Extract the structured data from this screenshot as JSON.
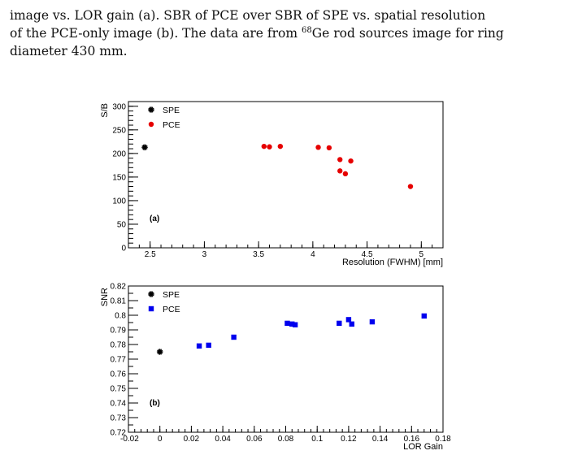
{
  "caption": {
    "line1": "image vs. LOR gain (a). SBR of PCE over SBR of SPE vs. spatial resolution",
    "line2": "of the PCE-only image (b). The data are from ",
    "superscript": "68",
    "line2_rest": "Ge rod sources image for ring",
    "line3": "diameter 430 mm."
  },
  "colors": {
    "spe": "#000000",
    "pce_a": "#e60000",
    "pce_b": "#0000ee"
  },
  "chart_data": [
    {
      "type": "scatter",
      "panel_label": "(a)",
      "xlabel": "Resolution (FWHM) [mm]",
      "ylabel": "S/B",
      "xlim": [
        2.3,
        5.2
      ],
      "ylim": [
        0,
        310
      ],
      "xticks": [
        2.5,
        3,
        3.5,
        4,
        4.5,
        5
      ],
      "xtick_labels": [
        "2.5",
        "3",
        "3.5",
        "4",
        "4.5",
        "5"
      ],
      "yticks": [
        0,
        50,
        100,
        150,
        200,
        250,
        300
      ],
      "ytick_labels": [
        "0",
        "50",
        "100",
        "150",
        "200",
        "250",
        "300"
      ],
      "legend": "top-left",
      "series": [
        {
          "name": "SPE",
          "marker": "star",
          "color": "#000000",
          "points": [
            [
              2.45,
              213
            ]
          ]
        },
        {
          "name": "PCE",
          "marker": "circle",
          "color": "#e60000",
          "points": [
            [
              3.55,
              215
            ],
            [
              3.6,
              214
            ],
            [
              3.7,
              215
            ],
            [
              4.05,
              213
            ],
            [
              4.15,
              212
            ],
            [
              4.25,
              187
            ],
            [
              4.35,
              184
            ],
            [
              4.25,
              163
            ],
            [
              4.3,
              157
            ],
            [
              4.9,
              130
            ]
          ]
        }
      ]
    },
    {
      "type": "scatter",
      "panel_label": "(b)",
      "xlabel": "LOR Gain",
      "ylabel": "SNR",
      "xlim": [
        -0.02,
        0.18
      ],
      "ylim": [
        0.72,
        0.82
      ],
      "xticks": [
        -0.02,
        0,
        0.02,
        0.04,
        0.06,
        0.08,
        0.1,
        0.12,
        0.14,
        0.16,
        0.18
      ],
      "xtick_labels": [
        "-0.02",
        "0",
        "0.02",
        "0.04",
        "0.06",
        "0.08",
        "0.1",
        "0.12",
        "0.14",
        "0.16",
        "0.18"
      ],
      "yticks": [
        0.72,
        0.73,
        0.74,
        0.75,
        0.76,
        0.77,
        0.78,
        0.79,
        0.8,
        0.81,
        0.82
      ],
      "ytick_labels": [
        "0.72",
        "0.73",
        "0.74",
        "0.75",
        "0.76",
        "0.77",
        "0.78",
        "0.79",
        "0.8",
        "0.81",
        "0.82"
      ],
      "legend": "top-left",
      "series": [
        {
          "name": "SPE",
          "marker": "star",
          "color": "#000000",
          "points": [
            [
              0.0,
              0.775
            ]
          ]
        },
        {
          "name": "PCE",
          "marker": "square",
          "color": "#0000ee",
          "points": [
            [
              0.025,
              0.779
            ],
            [
              0.031,
              0.7795
            ],
            [
              0.047,
              0.785
            ],
            [
              0.081,
              0.7945
            ],
            [
              0.084,
              0.794
            ],
            [
              0.086,
              0.7935
            ],
            [
              0.114,
              0.7945
            ],
            [
              0.12,
              0.797
            ],
            [
              0.122,
              0.794
            ],
            [
              0.135,
              0.7955
            ],
            [
              0.168,
              0.7995
            ]
          ]
        }
      ]
    }
  ]
}
